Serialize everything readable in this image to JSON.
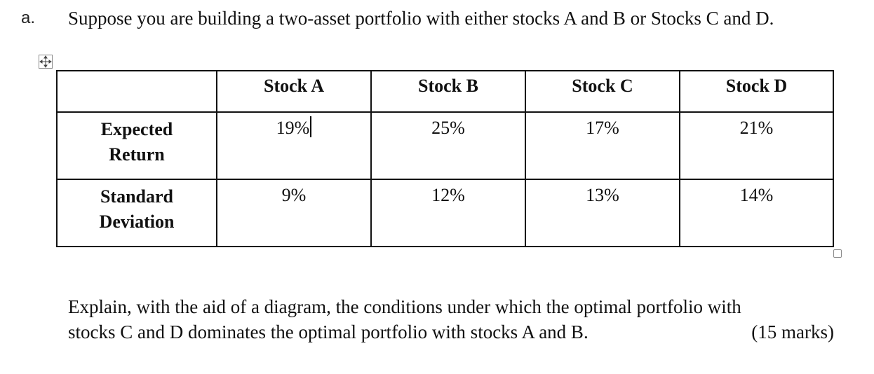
{
  "question": {
    "marker": "a.",
    "text": "Suppose you are building a two-asset portfolio with either stocks A and B or Stocks C and D."
  },
  "table": {
    "headers": [
      "",
      "Stock A",
      "Stock B",
      "Stock C",
      "Stock D"
    ],
    "rows": [
      {
        "label_line1": "Expected",
        "label_line2": "Return",
        "values": [
          "19%",
          "25%",
          "17%",
          "21%"
        ]
      },
      {
        "label_line1": "Standard",
        "label_line2": "Deviation",
        "values": [
          "9%",
          "12%",
          "13%",
          "14%"
        ]
      }
    ]
  },
  "prompt": {
    "line1": "Explain, with the aid of a diagram, the conditions under which the optimal portfolio with",
    "line2": "stocks C and D dominates the optimal portfolio with stocks A and B.",
    "marks": "(15  marks)"
  },
  "icons": {
    "table_move_handle": "move-arrows-icon",
    "table_resize_handle": "resize-square-icon"
  }
}
